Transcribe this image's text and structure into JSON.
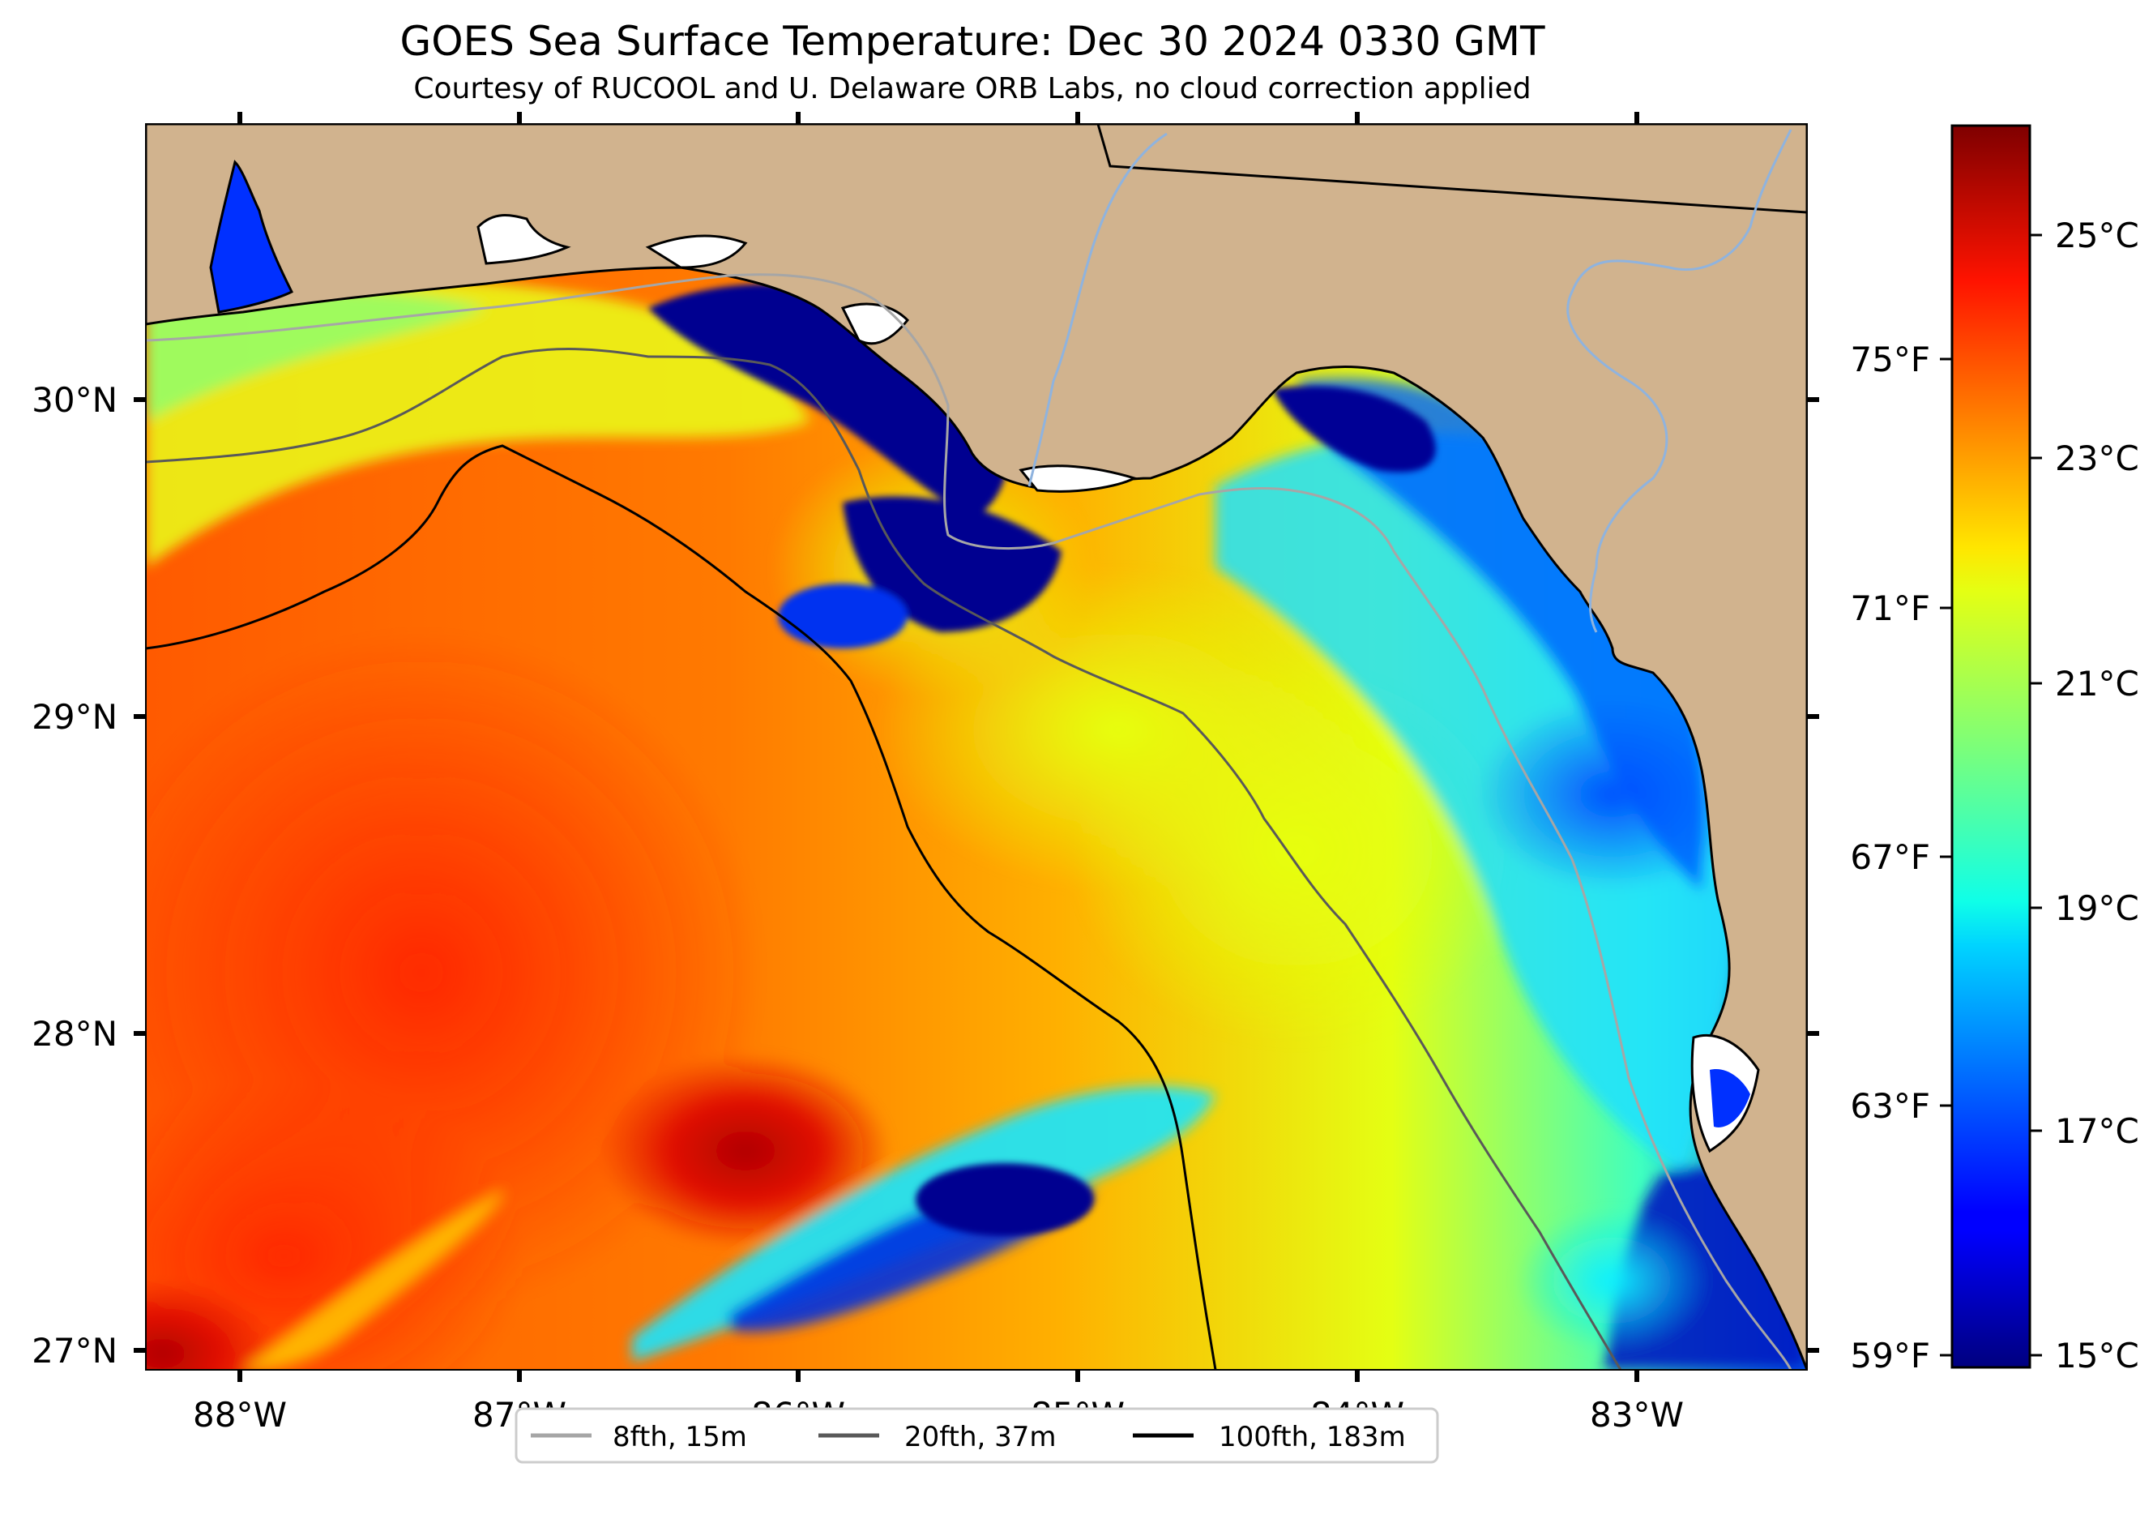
{
  "title": "GOES Sea Surface Temperature: Dec 30 2024 0330 GMT",
  "subtitle": "Courtesy of RUCOOL and U. Delaware ORB Labs, no cloud correction applied",
  "map": {
    "lon_ticks": [
      "88°W",
      "87°W",
      "86°W",
      "85°W",
      "84°W",
      "83°W"
    ],
    "lat_ticks": [
      "30°N",
      "29°N",
      "28°N",
      "27°N"
    ],
    "colors": {
      "land": "#d1b38e",
      "coastline": "#000000",
      "rivers": "#8fb3de",
      "contour_8fth": "#a6a6a6",
      "contour_20fth": "#595959",
      "contour_100fth": "#000000"
    }
  },
  "legend": {
    "items": [
      {
        "label": "8fth, 15m",
        "color": "#a6a6a6"
      },
      {
        "label": "20fth, 37m",
        "color": "#595959"
      },
      {
        "label": "100fth, 183m",
        "color": "#000000"
      }
    ]
  },
  "colorbar": {
    "colormap": "jet",
    "celsius_min": 14.8,
    "celsius_max": 26.3,
    "celsius_labels": [
      "25°C",
      "23°C",
      "21°C",
      "19°C",
      "17°C",
      "15°C"
    ],
    "fahrenheit_labels": [
      "75°F",
      "71°F",
      "67°F",
      "63°F",
      "59°F"
    ]
  }
}
